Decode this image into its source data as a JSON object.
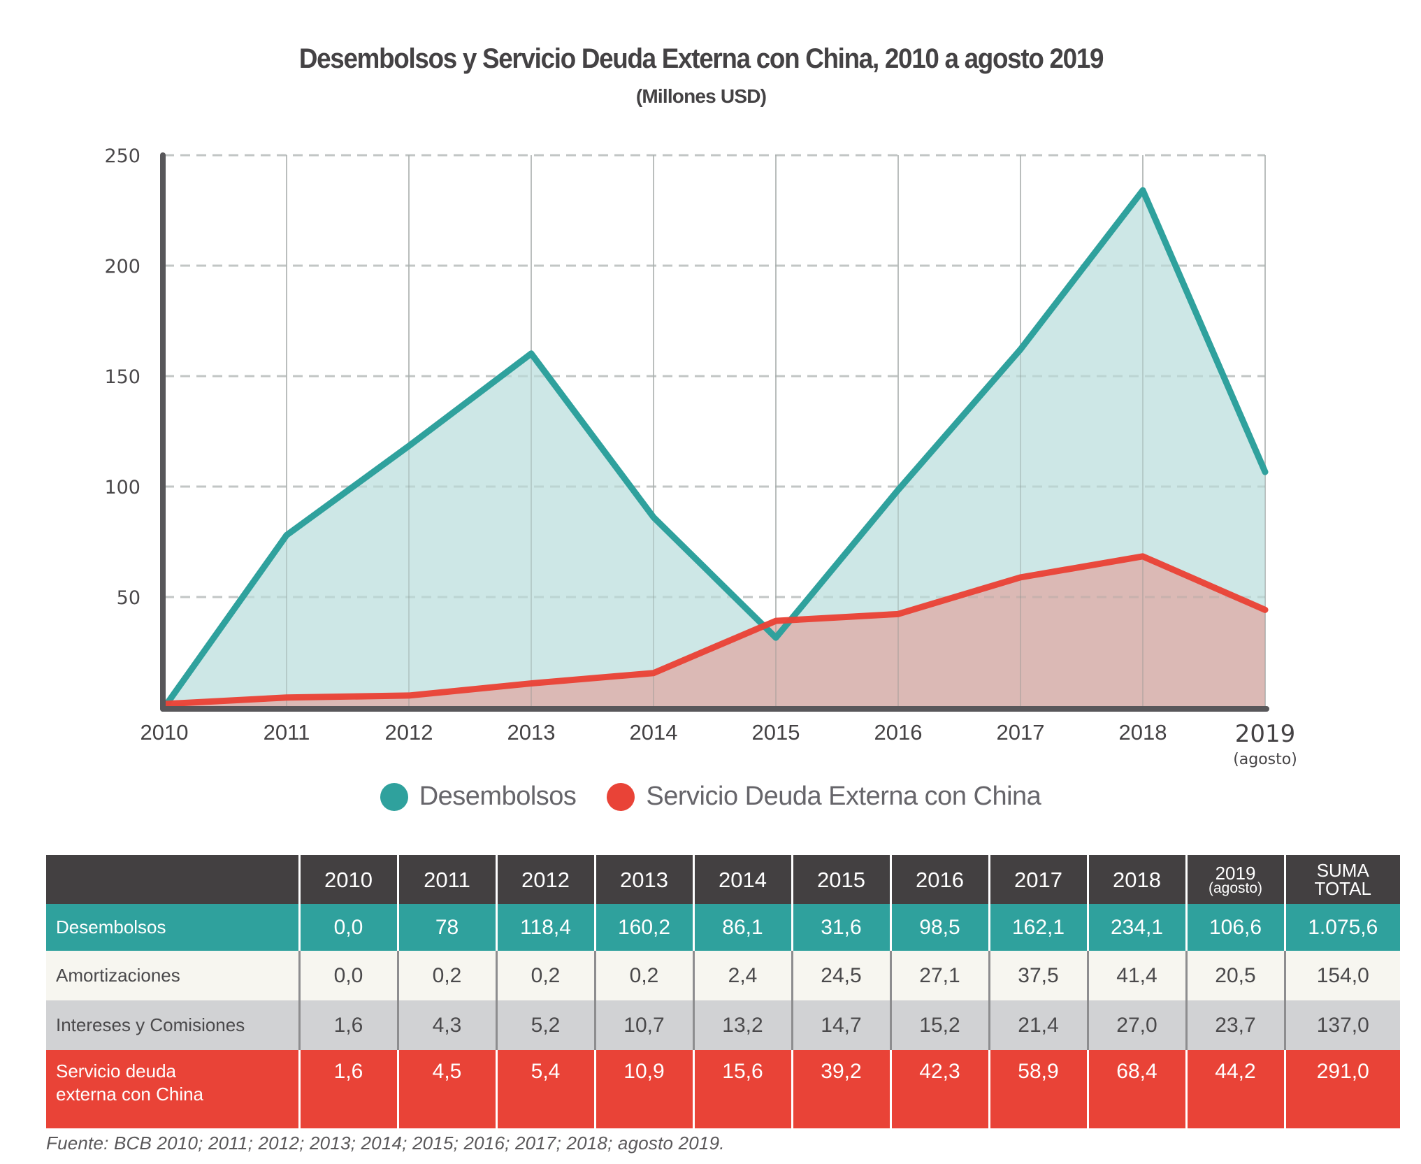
{
  "header": {
    "title": "Desembolsos y Servicio Deuda Externa con China, 2010 a agosto 2019",
    "subtitle": "(Millones USD)"
  },
  "colors": {
    "desembolsos": "#2fa19d",
    "desembolsos_fill": "#cde7e6",
    "servicio": "#e94337",
    "servicio_fill": "#d3bdba",
    "axis": "#58575a",
    "grid": "#d2d2d2",
    "table_header": "#434041"
  },
  "chart_data": {
    "type": "area",
    "title": "Desembolsos y Servicio Deuda Externa con China, 2010 a agosto 2019",
    "subtitle": "(Millones USD)",
    "xlabel": "",
    "ylabel": "",
    "categories": [
      "2010",
      "2011",
      "2012",
      "2013",
      "2014",
      "2015",
      "2016",
      "2017",
      "2018",
      "2019"
    ],
    "category_sublabels": [
      "",
      "",
      "",
      "",
      "",
      "",
      "",
      "",
      "",
      "(agosto)"
    ],
    "ylim": [
      0,
      250
    ],
    "yticks": [
      50,
      100,
      150,
      200,
      250
    ],
    "grid": true,
    "legend_position": "bottom-center",
    "series": [
      {
        "name": "Desembolsos",
        "color": "#2fa19d",
        "values": [
          0.0,
          78,
          118.4,
          160.2,
          86.1,
          31.6,
          98.5,
          162.1,
          234.1,
          106.6
        ]
      },
      {
        "name": "Servicio Deuda Externa con China",
        "color": "#e94337",
        "values": [
          1.6,
          4.5,
          5.4,
          10.9,
          15.6,
          39.2,
          42.3,
          58.9,
          68.4,
          44.2
        ]
      }
    ]
  },
  "legend": [
    {
      "label": "Desembolsos",
      "color": "#2fa19d"
    },
    {
      "label": "Servicio Deuda Externa con China",
      "color": "#e94337"
    }
  ],
  "table": {
    "headers": [
      {
        "main": "2010",
        "sub": ""
      },
      {
        "main": "2011",
        "sub": ""
      },
      {
        "main": "2012",
        "sub": ""
      },
      {
        "main": "2013",
        "sub": ""
      },
      {
        "main": "2014",
        "sub": ""
      },
      {
        "main": "2015",
        "sub": ""
      },
      {
        "main": "2016",
        "sub": ""
      },
      {
        "main": "2017",
        "sub": ""
      },
      {
        "main": "2018",
        "sub": ""
      },
      {
        "main": "2019",
        "sub": "(agosto)"
      },
      {
        "main": "SUMA",
        "sub": "TOTAL"
      }
    ],
    "rows": [
      {
        "label": "Desembolsos",
        "values": [
          "0,0",
          "78",
          "118,4",
          "160,2",
          "86,1",
          "31,6",
          "98,5",
          "162,1",
          "234,1",
          "106,6",
          "1.075,6"
        ]
      },
      {
        "label": "Amortizaciones",
        "values": [
          "0,0",
          "0,2",
          "0,2",
          "0,2",
          "2,4",
          "24,5",
          "27,1",
          "37,5",
          "41,4",
          "20,5",
          "154,0"
        ]
      },
      {
        "label": "Intereses y Comisiones",
        "values": [
          "1,6",
          "4,3",
          "5,2",
          "10,7",
          "13,2",
          "14,7",
          "15,2",
          "21,4",
          "27,0",
          "23,7",
          "137,0"
        ]
      },
      {
        "label": "Servicio deuda externa con China",
        "values": [
          "1,6",
          "4,5",
          "5,4",
          "10,9",
          "15,6",
          "39,2",
          "42,3",
          "58,9",
          "68,4",
          "44,2",
          "291,0"
        ]
      }
    ]
  },
  "footnote": "Fuente: BCB 2010; 2011; 2012; 2013; 2014; 2015; 2016; 2017; 2018; agosto 2019."
}
